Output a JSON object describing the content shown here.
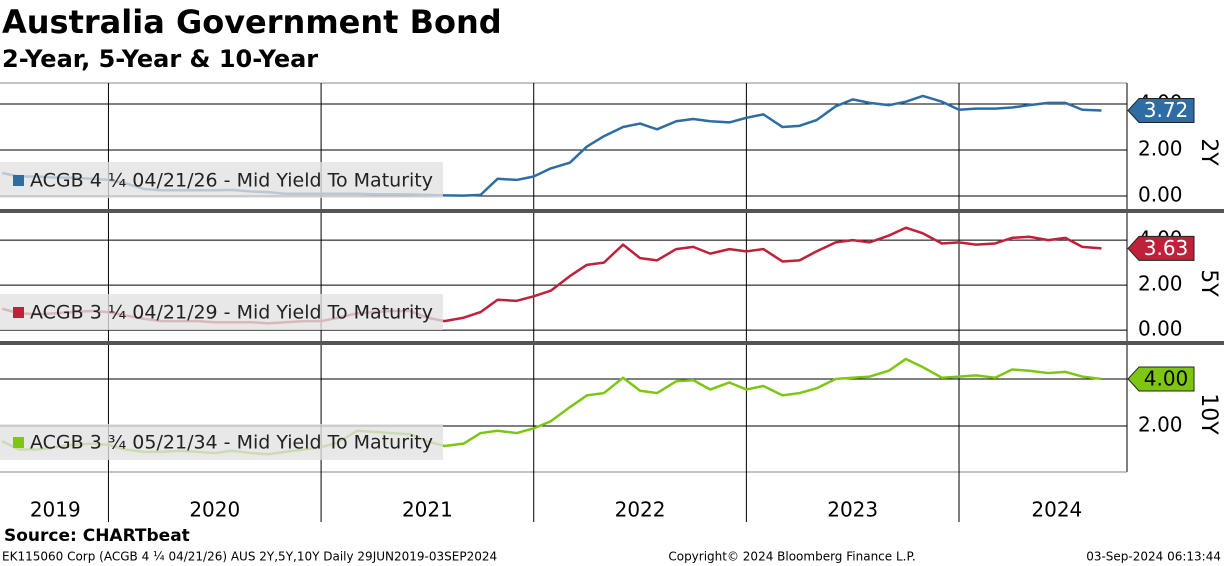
{
  "title": "Australia Government Bond",
  "subtitle": "2-Year, 5-Year & 10-Year",
  "source": "Source: CHARTbeat",
  "footer": {
    "left": "EK115060 Corp (ACGB 4 ¼ 04/21/26) AUS 2Y,5Y,10Y  Daily 29JUN2019-03SEP2024",
    "center": "Copyright© 2024 Bloomberg Finance L.P.",
    "right": "03-Sep-2024 06:13:44"
  },
  "x_axis": {
    "xlim": [
      2019.49,
      2024.79
    ],
    "xticks": [
      {
        "value": 2019.75,
        "label": "2019"
      },
      {
        "value": 2020.5,
        "label": "2020"
      },
      {
        "value": 2021.5,
        "label": "2021"
      },
      {
        "value": 2022.5,
        "label": "2022"
      },
      {
        "value": 2023.5,
        "label": "2023"
      },
      {
        "value": 2024.46,
        "label": "2024"
      }
    ],
    "xgrid": [
      2020,
      2021,
      2022,
      2023,
      2024
    ]
  },
  "chart_data": [
    {
      "type": "line",
      "axis_label": "2Y",
      "grid": true,
      "ylim": [
        -0.52,
        4.87
      ],
      "yticks": [
        {
          "value": 0,
          "label": "0.00"
        },
        {
          "value": 2,
          "label": "2.00"
        },
        {
          "value": 4,
          "label": "4.00"
        }
      ],
      "x": [
        2019.5,
        2019.58,
        2019.67,
        2019.75,
        2019.83,
        2019.92,
        2020.0,
        2020.08,
        2020.17,
        2020.25,
        2020.33,
        2020.42,
        2020.5,
        2020.58,
        2020.67,
        2020.75,
        2020.83,
        2020.92,
        2021.0,
        2021.08,
        2021.17,
        2021.25,
        2021.33,
        2021.42,
        2021.5,
        2021.58,
        2021.67,
        2021.75,
        2021.83,
        2021.92,
        2022.0,
        2022.08,
        2022.17,
        2022.25,
        2022.33,
        2022.42,
        2022.5,
        2022.58,
        2022.67,
        2022.75,
        2022.83,
        2022.92,
        2023.0,
        2023.08,
        2023.17,
        2023.25,
        2023.33,
        2023.42,
        2023.5,
        2023.58,
        2023.67,
        2023.75,
        2023.83,
        2023.92,
        2024.0,
        2024.08,
        2024.17,
        2024.25,
        2024.33,
        2024.42,
        2024.5,
        2024.58,
        2024.67
      ],
      "series": [
        {
          "name": "ACGB 4 ¼ 04/21/26 - Mid Yield To Maturity",
          "color": "#2e6ca4",
          "values": [
            1.0,
            0.85,
            0.85,
            0.8,
            0.8,
            0.75,
            0.7,
            0.55,
            0.3,
            0.25,
            0.25,
            0.25,
            0.25,
            0.27,
            0.2,
            0.17,
            0.1,
            0.1,
            0.1,
            0.1,
            0.1,
            0.08,
            0.08,
            0.07,
            0.05,
            0.03,
            0.02,
            0.05,
            0.75,
            0.7,
            0.85,
            1.2,
            1.45,
            2.15,
            2.6,
            3.0,
            3.15,
            2.9,
            3.25,
            3.35,
            3.25,
            3.2,
            3.4,
            3.55,
            3.0,
            3.05,
            3.3,
            3.9,
            4.2,
            4.05,
            3.95,
            4.1,
            4.35,
            4.1,
            3.75,
            3.8,
            3.8,
            3.85,
            3.95,
            4.05,
            4.05,
            3.75,
            3.72
          ],
          "value_labels": [
            null,
            null,
            null,
            null,
            null,
            null,
            null,
            null,
            null,
            null,
            null,
            null,
            null,
            null,
            null,
            null,
            null,
            null,
            null,
            null,
            null,
            null,
            null,
            null,
            null,
            null,
            null,
            null,
            null,
            null,
            null,
            null,
            null,
            null,
            null,
            null,
            null,
            null,
            null,
            null,
            null,
            null,
            null,
            null,
            null,
            null,
            null,
            null,
            null,
            null,
            null,
            null,
            null,
            null,
            null,
            null,
            null,
            null,
            null,
            null,
            null,
            null,
            "3.72"
          ]
        }
      ]
    },
    {
      "type": "line",
      "axis_label": "5Y",
      "grid": true,
      "ylim": [
        -0.44,
        5.16
      ],
      "yticks": [
        {
          "value": 0,
          "label": "0.00"
        },
        {
          "value": 2,
          "label": "2.00"
        },
        {
          "value": 4,
          "label": "4.00"
        }
      ],
      "x": [
        2019.5,
        2019.58,
        2019.67,
        2019.75,
        2019.83,
        2019.92,
        2020.0,
        2020.08,
        2020.17,
        2020.25,
        2020.33,
        2020.42,
        2020.5,
        2020.58,
        2020.67,
        2020.75,
        2020.83,
        2020.92,
        2021.0,
        2021.08,
        2021.17,
        2021.25,
        2021.33,
        2021.42,
        2021.5,
        2021.58,
        2021.67,
        2021.75,
        2021.83,
        2021.92,
        2022.0,
        2022.08,
        2022.17,
        2022.25,
        2022.33,
        2022.42,
        2022.5,
        2022.58,
        2022.67,
        2022.75,
        2022.83,
        2022.92,
        2023.0,
        2023.08,
        2023.17,
        2023.25,
        2023.33,
        2023.42,
        2023.5,
        2023.58,
        2023.67,
        2023.75,
        2023.83,
        2023.92,
        2024.0,
        2024.08,
        2024.17,
        2024.25,
        2024.33,
        2024.42,
        2024.5,
        2024.58,
        2024.67
      ],
      "series": [
        {
          "name": "ACGB 3 ¼ 04/21/29 - Mid Yield To Maturity",
          "color": "#c0213a",
          "values": [
            0.95,
            0.75,
            0.7,
            0.75,
            0.8,
            0.85,
            0.8,
            0.65,
            0.5,
            0.4,
            0.4,
            0.4,
            0.35,
            0.35,
            0.35,
            0.3,
            0.35,
            0.4,
            0.4,
            0.55,
            0.75,
            0.8,
            0.85,
            0.85,
            0.55,
            0.4,
            0.55,
            0.8,
            1.35,
            1.3,
            1.5,
            1.75,
            2.4,
            2.9,
            3.0,
            3.8,
            3.2,
            3.1,
            3.6,
            3.7,
            3.4,
            3.6,
            3.5,
            3.6,
            3.05,
            3.1,
            3.5,
            3.9,
            4.0,
            3.9,
            4.2,
            4.55,
            4.3,
            3.85,
            3.9,
            3.8,
            3.85,
            4.1,
            4.15,
            4.0,
            4.1,
            3.7,
            3.63
          ],
          "value_labels": [
            null,
            null,
            null,
            null,
            null,
            null,
            null,
            null,
            null,
            null,
            null,
            null,
            null,
            null,
            null,
            null,
            null,
            null,
            null,
            null,
            null,
            null,
            null,
            null,
            null,
            null,
            null,
            null,
            null,
            null,
            null,
            null,
            null,
            null,
            null,
            null,
            null,
            null,
            null,
            null,
            null,
            null,
            null,
            null,
            null,
            null,
            null,
            null,
            null,
            null,
            null,
            null,
            null,
            null,
            null,
            null,
            null,
            null,
            null,
            null,
            null,
            null,
            "3.63"
          ]
        }
      ]
    },
    {
      "type": "line",
      "axis_label": "10Y",
      "grid": true,
      "ylim": [
        0.13,
        5.4
      ],
      "yticks": [
        {
          "value": 2,
          "label": "2.00"
        },
        {
          "value": 4,
          "label": "4.00"
        }
      ],
      "x": [
        2019.5,
        2019.58,
        2019.67,
        2019.75,
        2019.83,
        2019.92,
        2020.0,
        2020.08,
        2020.17,
        2020.25,
        2020.33,
        2020.42,
        2020.5,
        2020.58,
        2020.67,
        2020.75,
        2020.83,
        2020.92,
        2021.0,
        2021.08,
        2021.17,
        2021.25,
        2021.33,
        2021.42,
        2021.5,
        2021.58,
        2021.67,
        2021.75,
        2021.83,
        2021.92,
        2022.0,
        2022.08,
        2022.17,
        2022.25,
        2022.33,
        2022.42,
        2022.5,
        2022.58,
        2022.67,
        2022.75,
        2022.83,
        2022.92,
        2023.0,
        2023.08,
        2023.17,
        2023.25,
        2023.33,
        2023.42,
        2023.5,
        2023.58,
        2023.67,
        2023.75,
        2023.83,
        2023.92,
        2024.0,
        2024.08,
        2024.17,
        2024.25,
        2024.33,
        2024.42,
        2024.5,
        2024.58,
        2024.67
      ],
      "series": [
        {
          "name": "ACGB 3 ¾ 05/21/34 - Mid Yield To Maturity",
          "color": "#7dc612",
          "values": [
            1.35,
            1.0,
            1.0,
            1.1,
            1.2,
            1.25,
            1.2,
            1.0,
            0.9,
            0.9,
            0.95,
            0.9,
            0.85,
            0.95,
            0.85,
            0.8,
            0.9,
            1.0,
            1.1,
            1.3,
            1.8,
            1.75,
            1.7,
            1.65,
            1.35,
            1.15,
            1.25,
            1.7,
            1.8,
            1.7,
            1.9,
            2.2,
            2.8,
            3.3,
            3.4,
            4.05,
            3.5,
            3.4,
            3.9,
            3.95,
            3.55,
            3.85,
            3.55,
            3.7,
            3.3,
            3.4,
            3.6,
            4.0,
            4.05,
            4.1,
            4.35,
            4.85,
            4.5,
            4.05,
            4.1,
            4.15,
            4.05,
            4.4,
            4.35,
            4.25,
            4.3,
            4.1,
            4.0
          ],
          "value_labels": [
            null,
            null,
            null,
            null,
            null,
            null,
            null,
            null,
            null,
            null,
            null,
            null,
            null,
            null,
            null,
            null,
            null,
            null,
            null,
            null,
            null,
            null,
            null,
            null,
            null,
            null,
            null,
            null,
            null,
            null,
            null,
            null,
            null,
            null,
            null,
            null,
            null,
            null,
            null,
            null,
            null,
            null,
            null,
            null,
            null,
            null,
            null,
            null,
            null,
            null,
            null,
            null,
            null,
            null,
            null,
            null,
            null,
            null,
            null,
            null,
            null,
            null,
            "4.00"
          ]
        }
      ]
    }
  ]
}
